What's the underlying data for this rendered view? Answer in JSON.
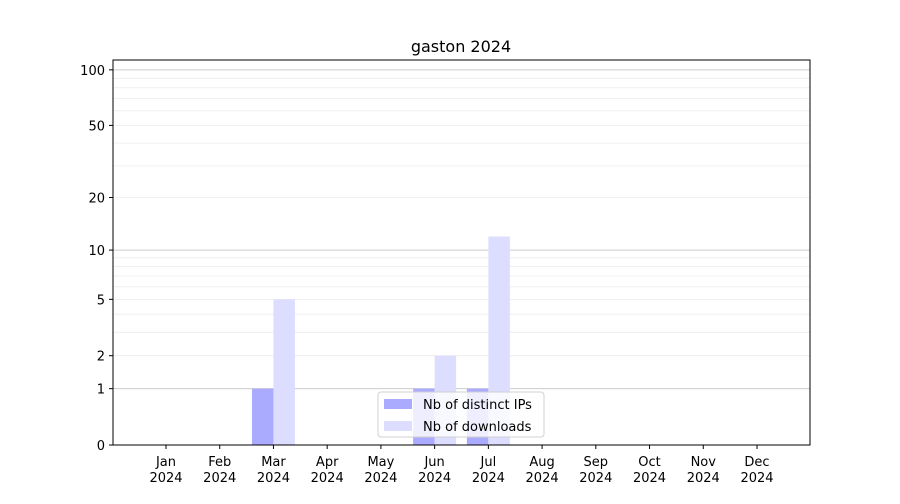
{
  "chart_data": {
    "type": "bar",
    "title": "gaston 2024",
    "xlabel": "",
    "ylabel": "",
    "y_scale": "log(1+y)",
    "ylim": [
      0,
      113
    ],
    "grid": "horizontal, major at 1/10/100 and minor between",
    "legend_position": "bottom-center",
    "categories": [
      "Jan\n2024",
      "Feb\n2024",
      "Mar\n2024",
      "Apr\n2024",
      "May\n2024",
      "Jun\n2024",
      "Jul\n2024",
      "Aug\n2024",
      "Sep\n2024",
      "Oct\n2024",
      "Nov\n2024",
      "Dec\n2024"
    ],
    "y_ticks": [
      0,
      1,
      2,
      5,
      10,
      20,
      50,
      100
    ],
    "series": [
      {
        "name": "Nb of distinct IPs",
        "color": "#aaaaff",
        "values": [
          0,
          0,
          1,
          0,
          0,
          1,
          1,
          0,
          0,
          0,
          0,
          0
        ]
      },
      {
        "name": "Nb of downloads",
        "color": "#ddddff",
        "values": [
          0,
          0,
          5,
          0,
          0,
          2,
          12,
          0,
          0,
          0,
          0,
          0
        ]
      }
    ]
  }
}
